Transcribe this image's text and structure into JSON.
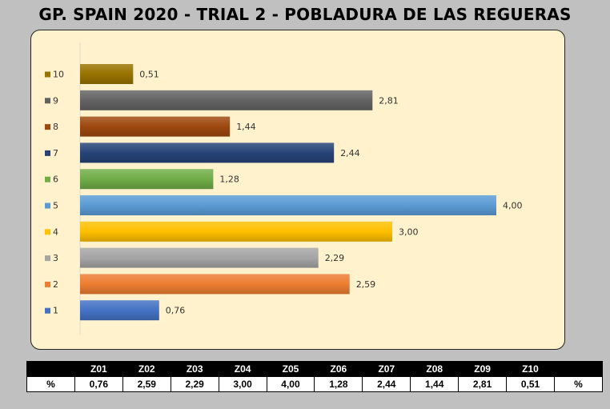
{
  "title": "GP. SPAIN 2020 - TRIAL 2 - POBLADURA DE LAS REGUERAS",
  "chart_data": {
    "type": "bar",
    "orientation": "horizontal",
    "categories": [
      "1",
      "2",
      "3",
      "4",
      "5",
      "6",
      "7",
      "8",
      "9",
      "10"
    ],
    "values": [
      0.76,
      2.59,
      2.29,
      3.0,
      4.0,
      1.28,
      2.44,
      1.44,
      2.81,
      0.51
    ],
    "value_labels": [
      "0,76",
      "2,59",
      "2,29",
      "3,00",
      "4,00",
      "1,28",
      "2,44",
      "1,44",
      "2,81",
      "0,51"
    ],
    "colors": [
      "#4472c4",
      "#ed7d31",
      "#a5a5a5",
      "#ffc000",
      "#5b9bd5",
      "#70ad47",
      "#264478",
      "#9e480e",
      "#636363",
      "#997300"
    ],
    "xlim": [
      0,
      4.0
    ],
    "legend_position": "left",
    "grid": false
  },
  "table": {
    "header": [
      "",
      "Z01",
      "Z02",
      "Z03",
      "Z04",
      "Z05",
      "Z06",
      "Z07",
      "Z08",
      "Z09",
      "Z10",
      ""
    ],
    "row": [
      "%",
      "0,76",
      "2,59",
      "2,29",
      "3,00",
      "4,00",
      "1,28",
      "2,44",
      "1,44",
      "2,81",
      "0,51",
      "%"
    ]
  }
}
